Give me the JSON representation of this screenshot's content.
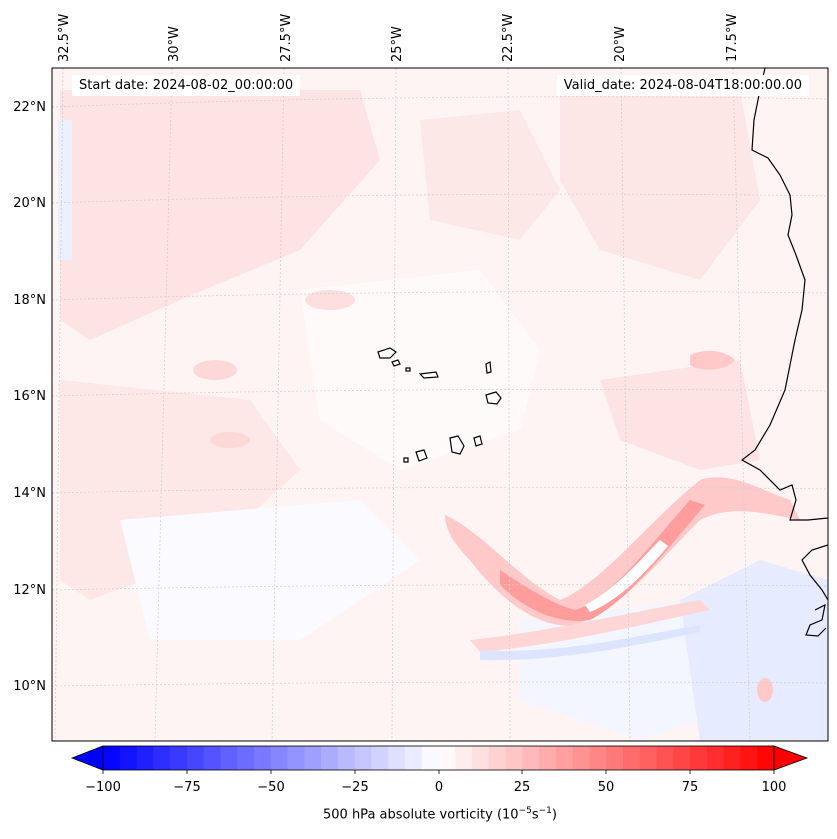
{
  "header": {
    "start_date": "Start date: 2024-08-02_00:00:00",
    "valid_date": "Valid_date: 2024-08-04T18:00:00.00"
  },
  "longitude_labels": [
    "32.5°W",
    "30°W",
    "27.5°W",
    "25°W",
    "22.5°W",
    "20°W",
    "17.5°W"
  ],
  "latitude_labels": [
    "22°N",
    "20°N",
    "18°N",
    "16°N",
    "14°N",
    "12°N",
    "10°N"
  ],
  "colorbar": {
    "ticks": [
      "−100",
      "−75",
      "−50",
      "−25",
      "0",
      "25",
      "50",
      "75",
      "100"
    ],
    "range": [
      -100,
      100
    ],
    "step": 5,
    "colormap": "bwr",
    "low_color": "#0000ff",
    "mid_color": "#ffffff",
    "high_color": "#ff0000",
    "label_main": "500 hPa absolute vorticity (10",
    "label_exp1": "−5",
    "label_mid": "s",
    "label_exp2": "−1",
    "label_end": ")"
  },
  "field": {
    "background_color": "#fff3f3",
    "positive_band_color": "#ff9a9a",
    "negative_band_color": "#c8d2ff"
  }
}
